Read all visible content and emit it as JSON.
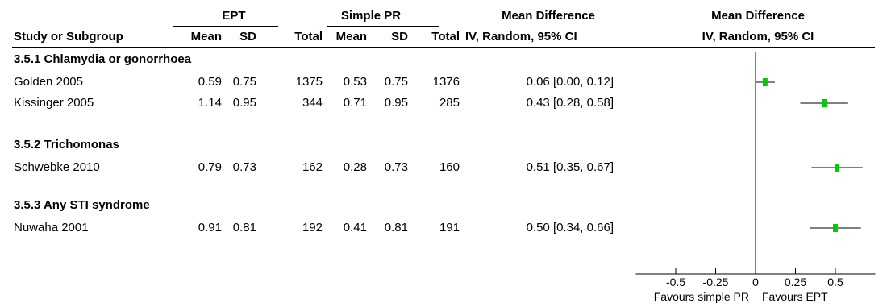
{
  "header": {
    "group1": "EPT",
    "group2": "Simple PR",
    "md_col": "Mean Difference",
    "md_sub": "IV, Random, 95% CI",
    "plot_title": "Mean Difference",
    "plot_sub": "IV, Random, 95% CI",
    "study_col": "Study or Subgroup",
    "mean": "Mean",
    "sd": "SD",
    "total": "Total"
  },
  "subgroups": [
    {
      "title": "3.5.1 Chlamydia or gonorrhoea",
      "studies": [
        {
          "name": "Golden 2005",
          "e_mean": "0.59",
          "e_sd": "0.75",
          "e_total": "1375",
          "s_mean": "0.53",
          "s_sd": "0.75",
          "s_total": "1376",
          "ci_text": "0.06 [0.00, 0.12]"
        },
        {
          "name": "Kissinger 2005",
          "e_mean": "1.14",
          "e_sd": "0.95",
          "e_total": "344",
          "s_mean": "0.71",
          "s_sd": "0.95",
          "s_total": "285",
          "ci_text": "0.43 [0.28, 0.58]"
        }
      ]
    },
    {
      "title": "3.5.2 Trichomonas",
      "studies": [
        {
          "name": "Schwebke 2010",
          "e_mean": "0.79",
          "e_sd": "0.73",
          "e_total": "162",
          "s_mean": "0.28",
          "s_sd": "0.73",
          "s_total": "160",
          "ci_text": "0.51 [0.35, 0.67]"
        }
      ]
    },
    {
      "title": "3.5.3 Any STI syndrome",
      "studies": [
        {
          "name": "Nuwaha 2001",
          "e_mean": "0.91",
          "e_sd": "0.81",
          "e_total": "192",
          "s_mean": "0.41",
          "s_sd": "0.81",
          "s_total": "191",
          "ci_text": "0.50 [0.34, 0.66]"
        }
      ]
    }
  ],
  "chart_data": {
    "type": "scatter",
    "title": "Mean Difference",
    "subtitle": "IV, Random, 95% CI",
    "xlim": [
      -0.75,
      0.75
    ],
    "x_ticks": [
      -0.5,
      -0.25,
      0,
      0.25,
      0.5
    ],
    "x_tick_labels": [
      "-0.5",
      "-0.25",
      "0",
      "0.25",
      "0.5"
    ],
    "left_label": "Favours simple PR",
    "right_label": "Favours EPT",
    "marker_color": "#00cc00",
    "line_color": "#000000",
    "points": [
      {
        "study": "Golden 2005",
        "md": 0.06,
        "lo": 0.0,
        "hi": 0.12
      },
      {
        "study": "Kissinger 2005",
        "md": 0.43,
        "lo": 0.28,
        "hi": 0.58
      },
      {
        "study": "Schwebke 2010",
        "md": 0.51,
        "lo": 0.35,
        "hi": 0.67
      },
      {
        "study": "Nuwaha 2001",
        "md": 0.5,
        "lo": 0.34,
        "hi": 0.66
      }
    ]
  }
}
